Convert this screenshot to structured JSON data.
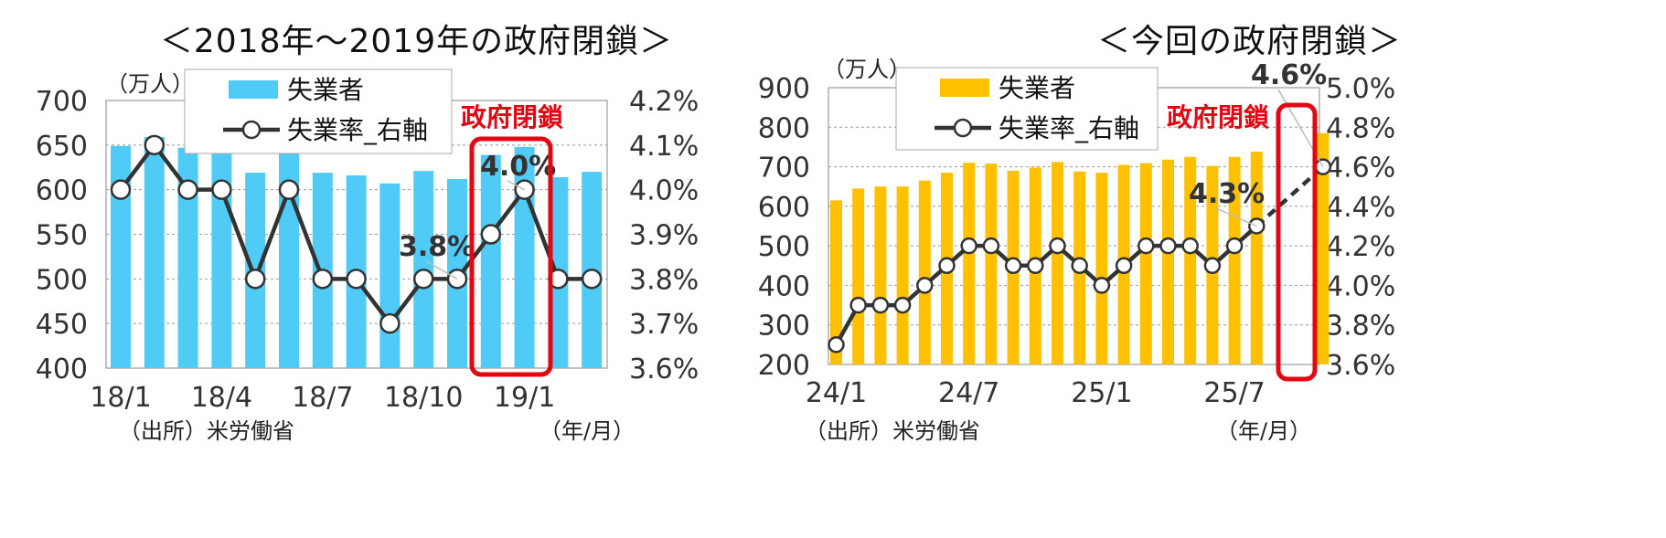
{
  "chart_data": [
    {
      "type": "bar+line",
      "title": "＜2018年～2019年の政府閉鎖＞",
      "unit_label": "（万人）",
      "source": "（出所）米労働省",
      "xunit": "（年/月）",
      "x_tick_labels": [
        "18/1",
        "18/4",
        "18/7",
        "18/10",
        "19/1"
      ],
      "categories": [
        "18/1",
        "18/2",
        "18/3",
        "18/4",
        "18/5",
        "18/6",
        "18/7",
        "18/8",
        "18/9",
        "18/10",
        "18/11",
        "18/12",
        "19/1",
        "19/2",
        "19/3"
      ],
      "series": [
        {
          "name": "失業者",
          "kind": "bar",
          "axis": "left",
          "color": "#4fcbf5",
          "values": [
            649,
            659,
            647,
            646,
            619,
            645,
            619,
            616,
            607,
            621,
            612,
            639,
            648,
            614,
            620
          ]
        },
        {
          "name": "失業率_右軸",
          "kind": "line",
          "axis": "right",
          "color": "#333333",
          "values": [
            4.0,
            4.1,
            4.0,
            4.0,
            3.8,
            4.0,
            3.8,
            3.8,
            3.7,
            3.8,
            3.8,
            3.9,
            4.0,
            3.8,
            3.8
          ]
        }
      ],
      "yleft": {
        "min": 400,
        "max": 700,
        "ticks": [
          "400",
          "450",
          "500",
          "550",
          "600",
          "650",
          "700"
        ]
      },
      "yright": {
        "min": 3.6,
        "max": 4.2,
        "ticks": [
          "3.6%",
          "3.7%",
          "3.8%",
          "3.9%",
          "4.0%",
          "4.1%",
          "4.2%"
        ]
      },
      "callouts": [
        "3.8%",
        "4.0%"
      ],
      "shutdown_label": "政府閉鎖",
      "legend": [
        "失業者",
        "失業率_右軸"
      ],
      "grid": "dotted horizontal",
      "legend_position": "top-left"
    },
    {
      "type": "bar+line",
      "title": "＜今回の政府閉鎖＞",
      "unit_label": "（万人）",
      "source": "（出所）米労働省",
      "xunit": "（年/月）",
      "x_tick_labels": [
        "24/1",
        "24/7",
        "25/1",
        "25/7"
      ],
      "categories": [
        "24/1",
        "24/2",
        "24/3",
        "24/4",
        "24/5",
        "24/6",
        "24/7",
        "24/8",
        "24/9",
        "24/10",
        "24/11",
        "24/12",
        "25/1",
        "25/2",
        "25/3",
        "25/4",
        "25/5",
        "25/6",
        "25/7",
        "25/8",
        "25/9",
        "25/10",
        "25/11"
      ],
      "series": [
        {
          "name": "失業者",
          "kind": "bar",
          "axis": "left",
          "color": "#ffc000",
          "values": [
            615,
            645,
            650,
            650,
            665,
            685,
            710,
            708,
            690,
            698,
            712,
            688,
            685,
            705,
            709,
            718,
            725,
            702,
            725,
            738,
            null,
            null,
            785
          ]
        },
        {
          "name": "失業率_右軸",
          "kind": "line",
          "axis": "right",
          "color": "#333333",
          "values": [
            3.7,
            3.9,
            3.9,
            3.9,
            4.0,
            4.1,
            4.2,
            4.2,
            4.1,
            4.1,
            4.2,
            4.1,
            4.0,
            4.1,
            4.2,
            4.2,
            4.2,
            4.1,
            4.2,
            4.3,
            null,
            null,
            4.6
          ]
        }
      ],
      "yleft": {
        "min": 200,
        "max": 900,
        "ticks": [
          "200",
          "300",
          "400",
          "500",
          "600",
          "700",
          "800",
          "900"
        ]
      },
      "yright": {
        "min": 3.6,
        "max": 5.0,
        "ticks": [
          "3.6%",
          "3.8%",
          "4.0%",
          "4.2%",
          "4.4%",
          "4.6%",
          "4.8%",
          "5.0%"
        ]
      },
      "callouts": [
        "4.3%",
        "4.6%"
      ],
      "shutdown_label": "政府閉鎖",
      "legend": [
        "失業者",
        "失業率_右軸"
      ],
      "grid": "dotted horizontal",
      "legend_position": "top-left"
    }
  ]
}
